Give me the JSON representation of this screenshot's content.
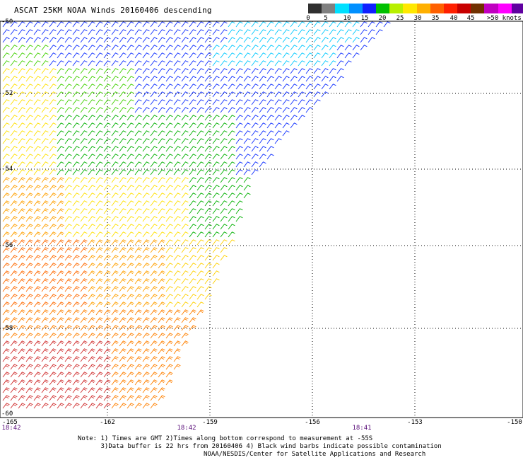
{
  "title": "ASCAT 25KM NOAA Winds 20160406 descending",
  "legend": {
    "labels": [
      "0",
      "5",
      "10",
      "15",
      "20",
      "25",
      "30",
      "35",
      "40",
      "45",
      ">50 knots"
    ],
    "colors": [
      "#303030",
      "#808080",
      "#00e0ff",
      "#0090ff",
      "#1020ff",
      "#00c000",
      "#b8f000",
      "#ffe800",
      "#ffb000",
      "#ff6000",
      "#ff2000",
      "#c80000",
      "#703000",
      "#c000c0",
      "#ff00ff",
      "#6000a0"
    ]
  },
  "map": {
    "lat_labels": [
      "-50",
      "-52",
      "-54",
      "-56",
      "-58",
      "-60"
    ],
    "lon_labels": [
      "-165",
      "-162",
      "-159",
      "-156",
      "-153",
      "-150"
    ],
    "time_labels": [
      "18:42",
      "18:42",
      "18:41"
    ]
  },
  "notes": {
    "line1": "Note: 1) Times are GMT 2)Times along bottom correspond to measurement at -55S",
    "line2": "      3)Data buffer is 22 hrs from 20160406 4) Black wind barbs indicate possible contamination",
    "credit": "NOAA/NESDIS/Center for Satellite Applications and Research"
  }
}
